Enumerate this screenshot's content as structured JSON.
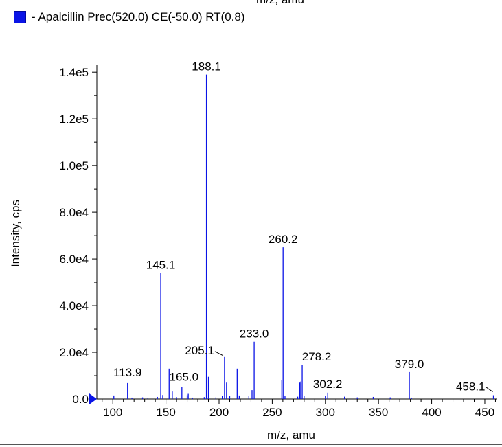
{
  "top_cut_label": "m/z, amu",
  "legend": {
    "color": "#0a14e6",
    "text": "- Apalcillin Prec(520.0) CE(-50.0) RT(0.8)"
  },
  "chart_data": {
    "type": "bar",
    "title": "",
    "xlabel": "m/z, amu",
    "ylabel": "Intensity, cps",
    "xlim": [
      85,
      461
    ],
    "ylim": [
      0,
      143000
    ],
    "x_ticks": [
      100,
      150,
      200,
      250,
      300,
      350,
      400,
      450
    ],
    "y_ticks": [
      {
        "value": 0,
        "label": "0.0"
      },
      {
        "value": 20000,
        "label": "2.0e4"
      },
      {
        "value": 40000,
        "label": "4.0e4"
      },
      {
        "value": 60000,
        "label": "6.0e4"
      },
      {
        "value": 80000,
        "label": "8.0e4"
      },
      {
        "value": 100000,
        "label": "1.0e5"
      },
      {
        "value": 120000,
        "label": "1.2e5"
      },
      {
        "value": 140000,
        "label": "1.4e5"
      }
    ],
    "series_color": "#0a14e6",
    "peaks": [
      {
        "mz": 101.0,
        "intensity": 1500
      },
      {
        "mz": 113.9,
        "intensity": 6800,
        "label": "113.9"
      },
      {
        "mz": 118.0,
        "intensity": 600
      },
      {
        "mz": 128.0,
        "intensity": 700
      },
      {
        "mz": 133.0,
        "intensity": 500
      },
      {
        "mz": 142.0,
        "intensity": 900
      },
      {
        "mz": 145.1,
        "intensity": 54000,
        "label": "145.1"
      },
      {
        "mz": 147.0,
        "intensity": 1700
      },
      {
        "mz": 153.0,
        "intensity": 13000
      },
      {
        "mz": 156.0,
        "intensity": 3200
      },
      {
        "mz": 160.0,
        "intensity": 800
      },
      {
        "mz": 165.0,
        "intensity": 5200,
        "label": "165.0"
      },
      {
        "mz": 170.0,
        "intensity": 1600
      },
      {
        "mz": 171.0,
        "intensity": 2200
      },
      {
        "mz": 175.0,
        "intensity": 600
      },
      {
        "mz": 186.0,
        "intensity": 800
      },
      {
        "mz": 188.1,
        "intensity": 139000,
        "label": "188.1"
      },
      {
        "mz": 190.0,
        "intensity": 9500
      },
      {
        "mz": 197.0,
        "intensity": 700
      },
      {
        "mz": 203.0,
        "intensity": 1200
      },
      {
        "mz": 205.1,
        "intensity": 18000,
        "label": "205.1"
      },
      {
        "mz": 207.0,
        "intensity": 7000
      },
      {
        "mz": 210.0,
        "intensity": 1400
      },
      {
        "mz": 217.0,
        "intensity": 13000
      },
      {
        "mz": 219.0,
        "intensity": 1500
      },
      {
        "mz": 228.0,
        "intensity": 1200
      },
      {
        "mz": 231.0,
        "intensity": 3800
      },
      {
        "mz": 233.0,
        "intensity": 24500,
        "label": "233.0"
      },
      {
        "mz": 259.0,
        "intensity": 8000
      },
      {
        "mz": 260.2,
        "intensity": 65000,
        "label": "260.2"
      },
      {
        "mz": 262.0,
        "intensity": 1200
      },
      {
        "mz": 274.0,
        "intensity": 1000
      },
      {
        "mz": 276.0,
        "intensity": 7000
      },
      {
        "mz": 277.0,
        "intensity": 7500
      },
      {
        "mz": 278.2,
        "intensity": 14700,
        "label": "278.2"
      },
      {
        "mz": 280.0,
        "intensity": 1200
      },
      {
        "mz": 300.0,
        "intensity": 1300
      },
      {
        "mz": 302.2,
        "intensity": 2700,
        "label": "302.2"
      },
      {
        "mz": 318.0,
        "intensity": 1000
      },
      {
        "mz": 330.0,
        "intensity": 700
      },
      {
        "mz": 345.0,
        "intensity": 900
      },
      {
        "mz": 361.0,
        "intensity": 700
      },
      {
        "mz": 379.0,
        "intensity": 11500,
        "label": "379.0"
      },
      {
        "mz": 381.0,
        "intensity": 600
      },
      {
        "mz": 458.1,
        "intensity": 1600,
        "label": "458.1"
      }
    ]
  }
}
